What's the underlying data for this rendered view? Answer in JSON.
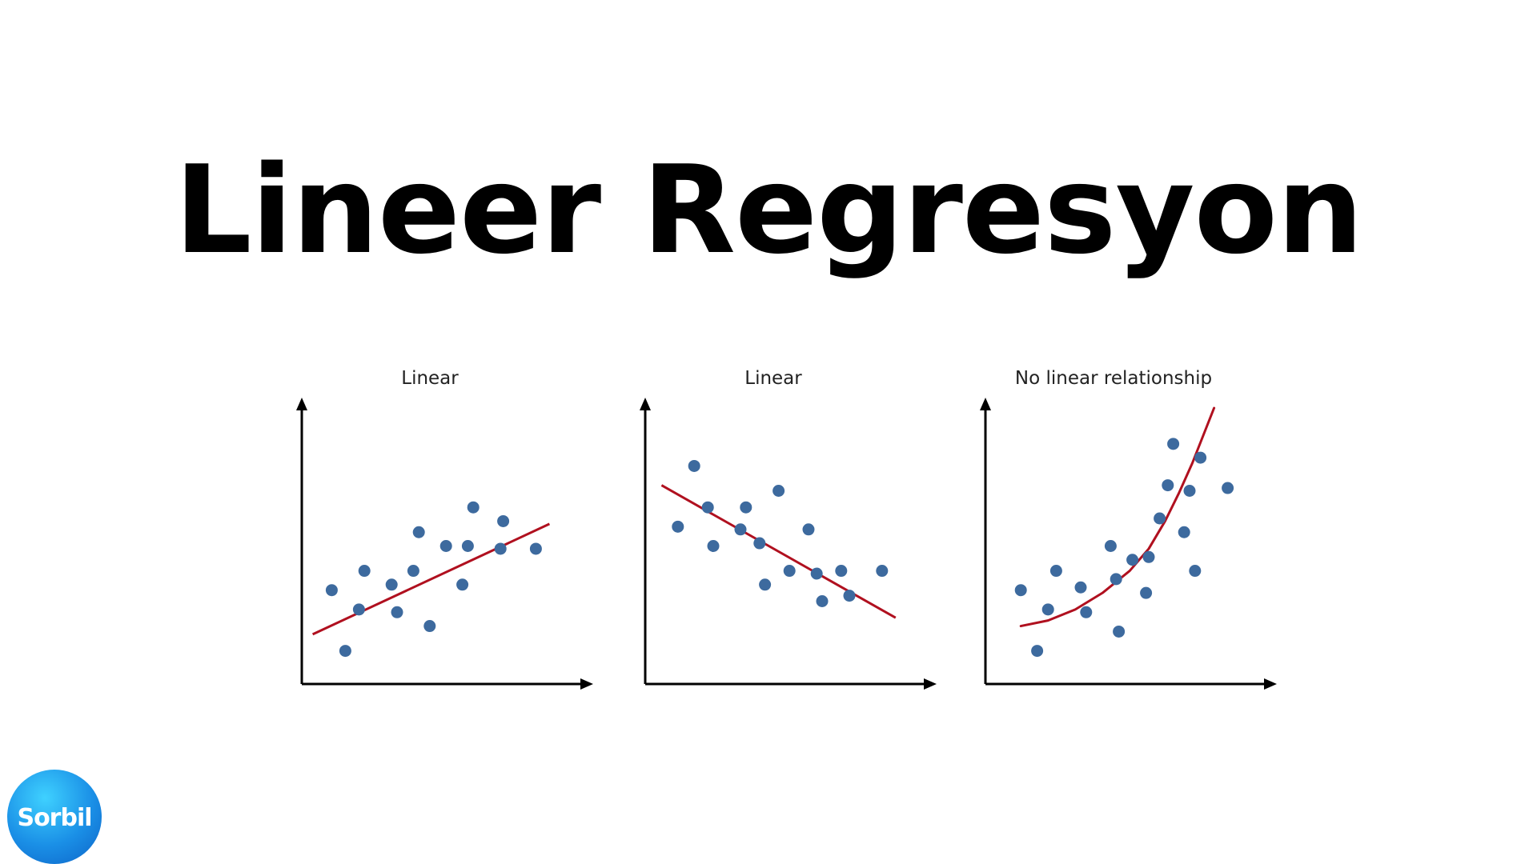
{
  "slide": {
    "title": "Lineer Regresyon"
  },
  "logo": {
    "text": "Sorbil"
  },
  "colors": {
    "point": "#3d6a9e",
    "fit_line": "#b0101f",
    "axis": "#000000"
  },
  "chart_data": [
    {
      "type": "scatter",
      "title": "Linear",
      "xlabel": "",
      "ylabel": "",
      "xlim": [
        0,
        10
      ],
      "ylim": [
        0,
        10
      ],
      "grid": false,
      "points": [
        [
          1.1,
          3.4
        ],
        [
          1.6,
          1.2
        ],
        [
          2.3,
          4.1
        ],
        [
          2.1,
          2.7
        ],
        [
          3.3,
          3.6
        ],
        [
          3.5,
          2.6
        ],
        [
          4.1,
          4.1
        ],
        [
          4.3,
          5.5
        ],
        [
          4.7,
          2.1
        ],
        [
          5.3,
          5.0
        ],
        [
          5.9,
          3.6
        ],
        [
          6.1,
          5.0
        ],
        [
          6.3,
          6.4
        ],
        [
          7.3,
          4.9
        ],
        [
          7.4,
          5.9
        ],
        [
          8.6,
          4.9
        ]
      ],
      "fit": {
        "kind": "linear",
        "points": [
          [
            0.4,
            1.8
          ],
          [
            9.1,
            5.8
          ]
        ]
      }
    },
    {
      "type": "scatter",
      "title": "Linear",
      "xlabel": "",
      "ylabel": "",
      "xlim": [
        0,
        10
      ],
      "ylim": [
        0,
        10
      ],
      "grid": false,
      "points": [
        [
          1.2,
          5.7
        ],
        [
          1.8,
          7.9
        ],
        [
          2.3,
          6.4
        ],
        [
          2.5,
          5.0
        ],
        [
          3.5,
          5.6
        ],
        [
          3.7,
          6.4
        ],
        [
          4.2,
          5.1
        ],
        [
          4.4,
          3.6
        ],
        [
          4.9,
          7.0
        ],
        [
          5.3,
          4.1
        ],
        [
          6.0,
          5.6
        ],
        [
          6.3,
          4.0
        ],
        [
          6.5,
          3.0
        ],
        [
          7.2,
          4.1
        ],
        [
          7.5,
          3.2
        ],
        [
          8.7,
          4.1
        ]
      ],
      "fit": {
        "kind": "linear",
        "points": [
          [
            0.6,
            7.2
          ],
          [
            9.2,
            2.4
          ]
        ]
      }
    },
    {
      "type": "scatter",
      "title": "No linear relationship",
      "xlabel": "",
      "ylabel": "",
      "xlim": [
        0,
        10
      ],
      "ylim": [
        0,
        10
      ],
      "grid": false,
      "points": [
        [
          1.3,
          3.4
        ],
        [
          1.9,
          1.2
        ],
        [
          2.3,
          2.7
        ],
        [
          2.6,
          4.1
        ],
        [
          3.5,
          3.5
        ],
        [
          3.7,
          2.6
        ],
        [
          4.6,
          5.0
        ],
        [
          4.9,
          1.9
        ],
        [
          4.8,
          3.8
        ],
        [
          5.4,
          4.5
        ],
        [
          5.9,
          3.3
        ],
        [
          6.0,
          4.6
        ],
        [
          6.4,
          6.0
        ],
        [
          6.7,
          7.2
        ],
        [
          6.9,
          8.7
        ],
        [
          7.3,
          5.5
        ],
        [
          7.5,
          7.0
        ],
        [
          7.7,
          4.1
        ],
        [
          7.9,
          8.2
        ],
        [
          8.9,
          7.1
        ]
      ],
      "fit": {
        "kind": "exponential",
        "points": [
          [
            1.3,
            2.1
          ],
          [
            2.3,
            2.3
          ],
          [
            3.3,
            2.7
          ],
          [
            4.3,
            3.3
          ],
          [
            5.3,
            4.1
          ],
          [
            6.0,
            4.9
          ],
          [
            6.6,
            5.9
          ],
          [
            7.1,
            6.9
          ],
          [
            7.6,
            8.0
          ],
          [
            8.0,
            9.0
          ],
          [
            8.4,
            10.0
          ]
        ]
      }
    }
  ]
}
